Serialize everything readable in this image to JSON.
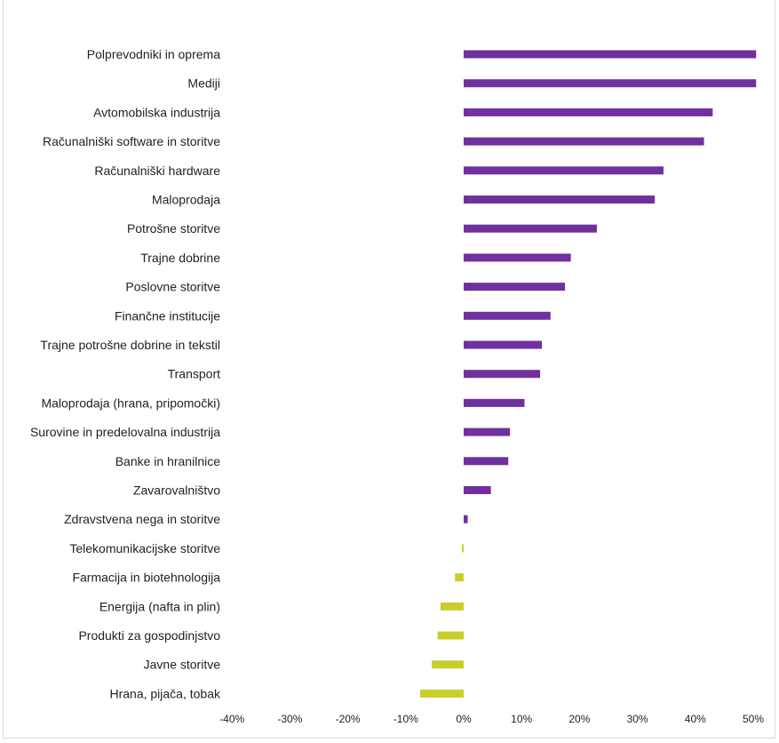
{
  "chart_data": {
    "type": "bar",
    "orientation": "horizontal",
    "categories": [
      "Polprevodniki in oprema",
      "Mediji",
      "Avtomobilska industrija",
      "Računalniški software in storitve",
      "Računalniški hardware",
      "Maloprodaja",
      "Potrošne storitve",
      "Trajne dobrine",
      "Poslovne storitve",
      "Finančne institucije",
      "Trajne potrošne dobrine in tekstil",
      "Transport",
      "Maloprodaja (hrana, pripomočki)",
      "Surovine in predelovalna industrija",
      "Banke in hranilnice",
      "Zavarovalništvo",
      "Zdravstvena nega in storitve",
      "Telekomunikacijske storitve",
      "Farmacija in biotehnologija",
      "Energija (nafta in plin)",
      "Produkti za gospodinjstvo",
      "Javne storitve",
      "Hrana, pijača, tobak"
    ],
    "values": [
      50.5,
      50.5,
      43.0,
      41.5,
      34.5,
      33.0,
      23.0,
      18.5,
      17.5,
      15.0,
      13.5,
      13.2,
      10.5,
      8.0,
      7.7,
      4.7,
      0.7,
      -0.3,
      -1.5,
      -4.0,
      -4.5,
      -5.5,
      -7.5
    ],
    "xlim": [
      -40,
      50
    ],
    "xticks": [
      -40,
      -30,
      -20,
      -10,
      0,
      10,
      20,
      30,
      40,
      50
    ],
    "xtick_labels": [
      "-40%",
      "-30%",
      "-20%",
      "-10%",
      "0%",
      "10%",
      "20%",
      "30%",
      "40%",
      "50%"
    ],
    "colors": {
      "positive": "#7030a0",
      "negative": "#c8cf2a"
    },
    "grid": false,
    "legend": "none"
  }
}
